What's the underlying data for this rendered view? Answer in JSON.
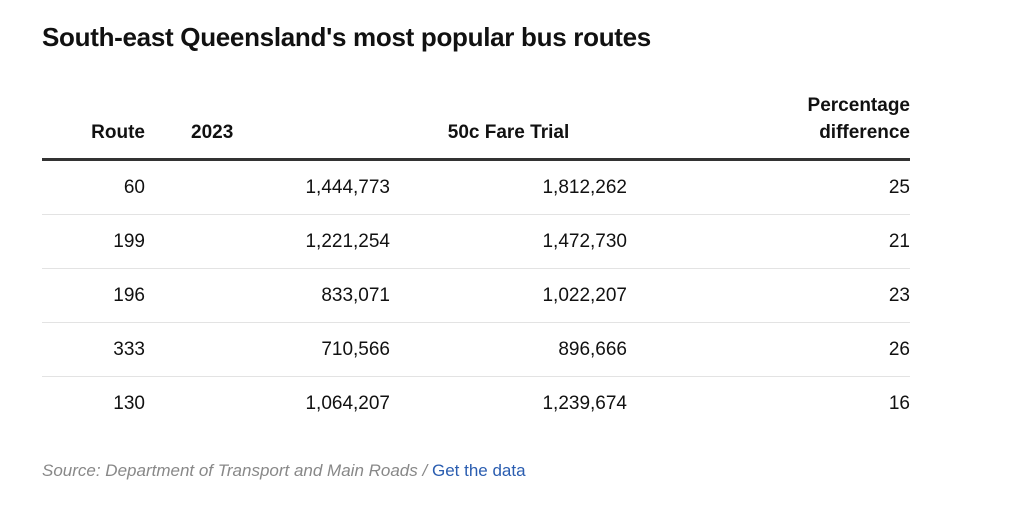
{
  "title": "South-east Queensland's most popular bus routes",
  "table": {
    "headers": [
      "Route",
      "2023",
      "50c Fare Trial",
      "Percentage difference"
    ],
    "rows": [
      [
        "60",
        "1,444,773",
        "1,812,262",
        "25"
      ],
      [
        "199",
        "1,221,254",
        "1,472,730",
        "21"
      ],
      [
        "196",
        "833,071",
        "1,022,207",
        "23"
      ],
      [
        "333",
        "710,566",
        "896,666",
        "26"
      ],
      [
        "130",
        "1,064,207",
        "1,239,674",
        "16"
      ]
    ]
  },
  "source": {
    "text": "Source: Department of Transport and Main Roads",
    "separator": "/",
    "link": "Get the data"
  }
}
